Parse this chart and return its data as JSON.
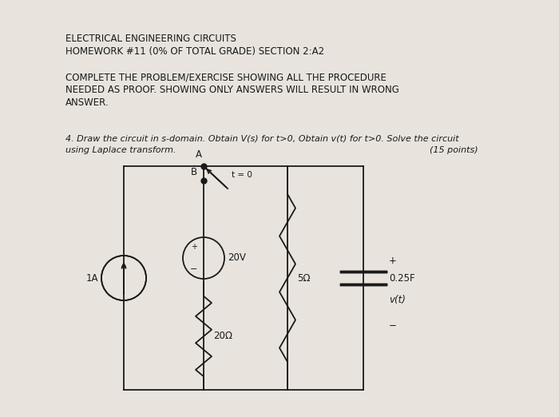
{
  "bg_color": "#e8e4dd",
  "title_line1": "ELECTRICAL ENGINEERING CIRCUITS",
  "title_line2": "HOMEWORK #11 (0% OF TOTAL GRADE) SECTION 2:A2",
  "instruction_line1": "COMPLETE THE PROBLEM/EXERCISE SHOWING ALL THE PROCEDURE",
  "instruction_line2": "NEEDED AS PROOF. SHOWING ONLY ANSWERS WILL RESULT IN WRONG",
  "instruction_line3": "ANSWER.",
  "problem_line1": "4. Draw the circuit in s-domain. Obtain V(s) for t>0, Obtain v(t) for t>0. Solve the circuit",
  "problem_line2": "using Laplace transform.",
  "points_text": "(15 points)",
  "header_fontsize": 8.5,
  "instruction_fontsize": 8.5,
  "problem_fontsize": 8.0,
  "circuit_fontsize": 8.5,
  "text_color": "#1a1a1a"
}
